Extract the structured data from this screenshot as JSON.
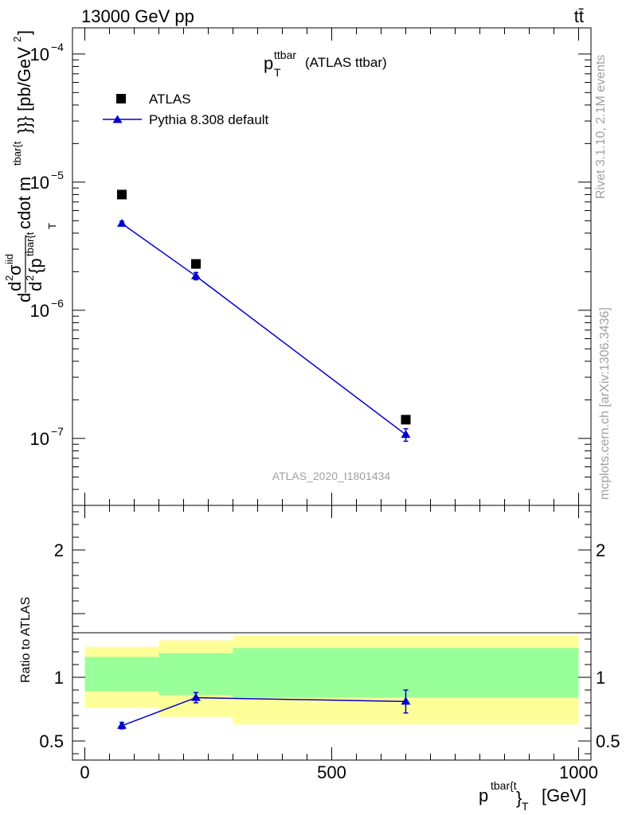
{
  "header": {
    "energy_label": "13000 GeV pp",
    "process_label": "tt̄"
  },
  "side_labels": {
    "rivet_version": "Rivet 3.1.10,  2.1M events",
    "source": "mcplots.cern.ch [arXiv:1306.3436]"
  },
  "colors": {
    "mc_line": "#0000cc",
    "band_outer": "#ffff99",
    "band_inner": "#99ff99",
    "data_marker": "#000000",
    "watermark": "#a0a0a0"
  },
  "chart_data": [
    {
      "type": "scatter",
      "panel": "main",
      "title_main": "p",
      "title_sup": "ttbar",
      "title_sub": "T",
      "title_suffix": "(ATLAS ttbar)",
      "analysis_label": "ATLAS_2020_I1801434",
      "ylabel_parts": [
        "d",
        "d",
        "2",
        "σ",
        "iid",
        "d",
        "2",
        "{p",
        "tbar{t",
        "cdot m",
        "tbar{t",
        "}}} [pb/GeV",
        "2",
        "]",
        "T"
      ],
      "yscale": "log",
      "ylim": [
        3e-08,
        0.00016
      ],
      "y_ticks": [
        {
          "value": 1e-07,
          "base": "10",
          "exp": "−7"
        },
        {
          "value": 1e-06,
          "base": "10",
          "exp": "−6"
        },
        {
          "value": 1e-05,
          "base": "10",
          "exp": "−5"
        },
        {
          "value": 0.0001,
          "base": "10",
          "exp": "−4"
        }
      ],
      "legend": {
        "position": "top-left",
        "entries": [
          {
            "label": "ATLAS",
            "marker": "square"
          },
          {
            "label": "Pythia 8.308 default",
            "marker": "triangle-line"
          }
        ]
      },
      "series": [
        {
          "name": "ATLAS",
          "x": [
            75,
            225,
            650
          ],
          "y": [
            8e-06,
            2.3e-06,
            1.4e-07
          ]
        },
        {
          "name": "Pythia 8.308 default",
          "x": [
            75,
            225,
            650
          ],
          "y": [
            4.75e-06,
            1.85e-06,
            1.07e-07
          ],
          "yerr_low": [
            2e-07,
            1.2e-07,
            1.2e-08
          ],
          "yerr_high": [
            2e-07,
            1.2e-07,
            1.2e-08
          ]
        }
      ]
    },
    {
      "type": "scatter",
      "panel": "ratio",
      "ylabel": "Ratio to ATLAS",
      "xlabel_main": "p",
      "xlabel_sup": "tbar{t",
      "xlabel_sub": "}",
      "xlabel_sub2": "T",
      "xlabel_unit": "[GeV]",
      "xlim": [
        -25,
        1025
      ],
      "ylim": [
        0.35,
        2.35
      ],
      "x_ticks": [
        0,
        500,
        1000
      ],
      "y_ticks": [
        0.5,
        1,
        2
      ],
      "bins": [
        {
          "x_low": 0,
          "x_high": 150,
          "outer_low": 0.76,
          "outer_high": 1.24,
          "inner_low": 0.89,
          "inner_high": 1.16
        },
        {
          "x_low": 150,
          "x_high": 300,
          "outer_low": 0.69,
          "outer_high": 1.29,
          "inner_low": 0.86,
          "inner_high": 1.19
        },
        {
          "x_low": 300,
          "x_high": 1000,
          "outer_low": 0.63,
          "outer_high": 1.33,
          "inner_low": 0.84,
          "inner_high": 1.23
        }
      ],
      "series": [
        {
          "name": "Pythia 8.308 default",
          "x": [
            75,
            225,
            650
          ],
          "y": [
            0.62,
            0.84,
            0.81
          ],
          "yerr_low": [
            0.025,
            0.04,
            0.09
          ],
          "yerr_high": [
            0.025,
            0.04,
            0.09
          ]
        }
      ]
    }
  ]
}
